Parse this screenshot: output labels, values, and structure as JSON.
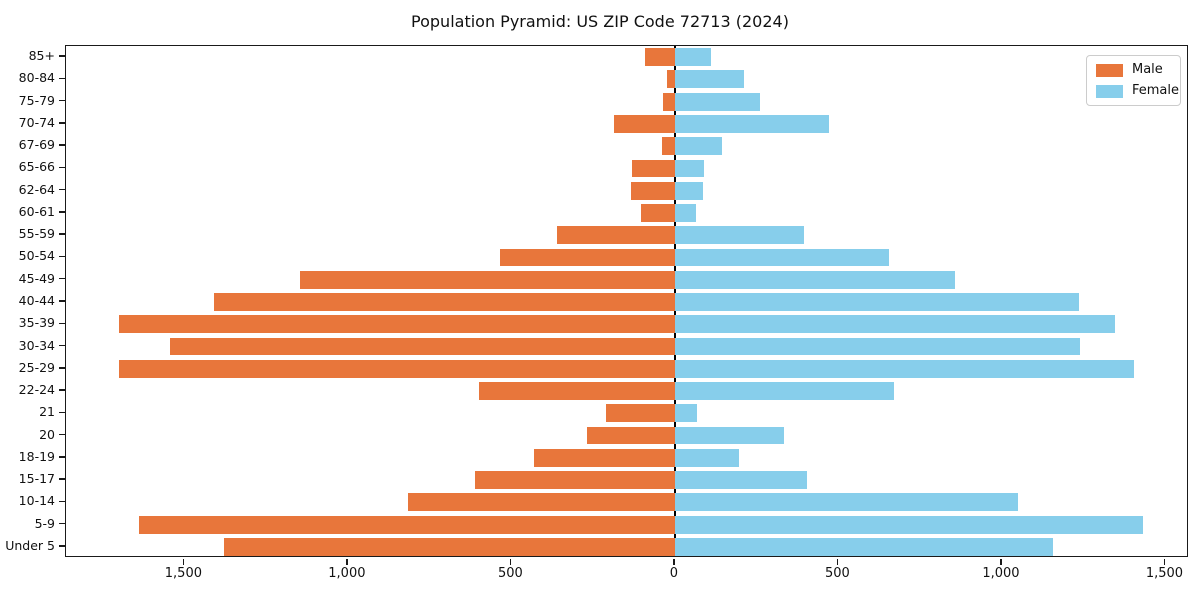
{
  "chart_data": {
    "type": "bar",
    "variant": "population-pyramid",
    "title": "Population Pyramid: US ZIP Code 72713 (2024)",
    "categories_top_to_bottom": [
      "85+",
      "80-84",
      "75-79",
      "70-74",
      "67-69",
      "65-66",
      "62-64",
      "60-61",
      "55-59",
      "50-54",
      "45-49",
      "40-44",
      "35-39",
      "30-34",
      "25-29",
      "22-24",
      "21",
      "20",
      "18-19",
      "15-17",
      "10-14",
      "5-9",
      "Under 5"
    ],
    "series": [
      {
        "name": "Male",
        "side": "left",
        "color": "#E8763B",
        "values": [
          90,
          25,
          35,
          185,
          40,
          130,
          135,
          105,
          360,
          535,
          1145,
          1410,
          1700,
          1545,
          1700,
          600,
          210,
          270,
          430,
          610,
          815,
          1640,
          1380
        ]
      },
      {
        "name": "Female",
        "side": "right",
        "color": "#87CEEB",
        "values": [
          110,
          210,
          260,
          470,
          145,
          90,
          85,
          65,
          395,
          655,
          855,
          1235,
          1345,
          1240,
          1405,
          670,
          68,
          335,
          195,
          405,
          1050,
          1430,
          1155
        ]
      }
    ],
    "x_axis": {
      "min": -1862,
      "max": 1572,
      "tick_values": [
        -1500,
        -1000,
        -500,
        0,
        500,
        1000,
        1500
      ],
      "tick_labels": [
        "1,500",
        "1,000",
        "500",
        "0",
        "500",
        "1,000",
        "1,500"
      ]
    },
    "y_axis": {
      "label": "",
      "categories_note": "age groups, 85+ at top, Under 5 at bottom"
    },
    "legend": {
      "position": "upper-right",
      "entries": [
        "Male",
        "Female"
      ]
    },
    "grid": false,
    "bar_height_fraction": 0.8
  }
}
